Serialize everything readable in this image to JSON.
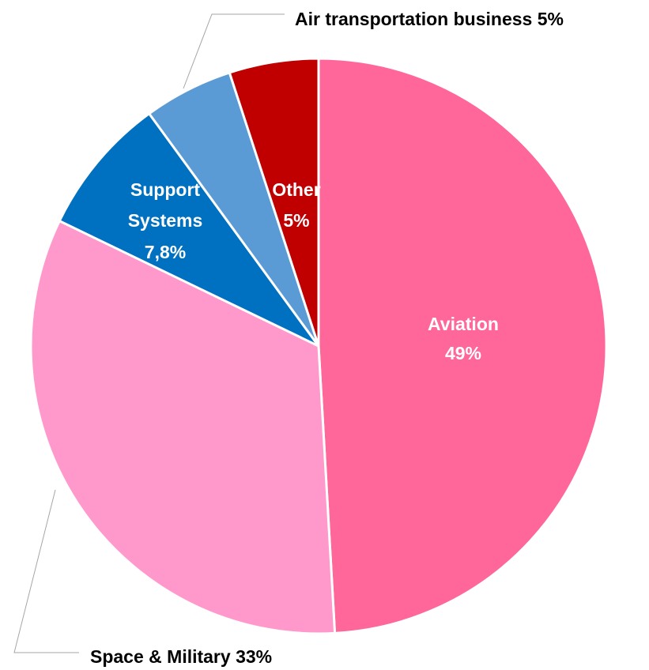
{
  "chart_data": {
    "type": "pie",
    "slices": [
      {
        "label": "Aviation",
        "value": 49,
        "value_label": "49%",
        "color": "#FF6699"
      },
      {
        "label": "Space & Military",
        "value": 33,
        "value_label": "33%",
        "color": "#FF99CC"
      },
      {
        "label": "Support Systems",
        "value": 7.8,
        "value_label": "7,8%",
        "color": "#0070C0"
      },
      {
        "label": "Air transportation business",
        "value": 5,
        "value_label": "5%",
        "color": "#5B9BD5"
      },
      {
        "label": "Other",
        "value": 5,
        "value_label": "5%",
        "color": "#C00000"
      }
    ],
    "start_angle": "12 o'clock",
    "direction": "clockwise",
    "legend": "none"
  },
  "labels": {
    "aviation": {
      "name": "Aviation",
      "pct": "49%"
    },
    "space": {
      "text": "Space & Military 33%"
    },
    "support": {
      "line1": "Support",
      "line2": "Systems",
      "pct": "7,8%"
    },
    "air": {
      "text": "Air transportation business 5%"
    },
    "other": {
      "name": "Other",
      "pct": "5%"
    }
  }
}
